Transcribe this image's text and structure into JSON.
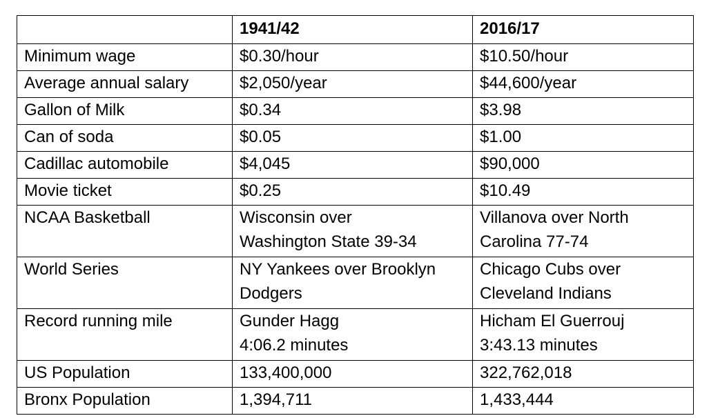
{
  "table": {
    "headers": [
      "",
      "1941/42",
      "2016/17"
    ],
    "rows": [
      {
        "label": "Minimum wage",
        "y1942": [
          "$0.30/hour"
        ],
        "y2017": [
          "$10.50/hour"
        ]
      },
      {
        "label": "Average annual salary",
        "y1942": [
          "$2,050/year"
        ],
        "y2017": [
          "$44,600/year"
        ]
      },
      {
        "label": "Gallon of Milk",
        "y1942": [
          "$0.34"
        ],
        "y2017": [
          "$3.98"
        ]
      },
      {
        "label": "Can of soda",
        "y1942": [
          "$0.05"
        ],
        "y2017": [
          "$1.00"
        ]
      },
      {
        "label": "Cadillac automobile",
        "y1942": [
          "$4,045"
        ],
        "y2017": [
          "$90,000"
        ]
      },
      {
        "label": "Movie ticket",
        "y1942": [
          "$0.25"
        ],
        "y2017": [
          "$10.49"
        ]
      },
      {
        "label": "NCAA Basketball",
        "y1942": [
          "Wisconsin over",
          "Washington State 39-34"
        ],
        "y2017": [
          "Villanova over North",
          "Carolina 77-74"
        ]
      },
      {
        "label": "World Series",
        "y1942": [
          "NY Yankees over Brooklyn",
          "Dodgers"
        ],
        "y2017": [
          "Chicago Cubs over",
          "Cleveland Indians"
        ]
      },
      {
        "label": "Record running mile",
        "y1942": [
          "Gunder Hagg",
          "4:06.2 minutes"
        ],
        "y2017": [
          "Hicham El Guerrouj",
          "3:43.13 minutes"
        ]
      },
      {
        "label": "US Population",
        "y1942": [
          "133,400,000"
        ],
        "y2017": [
          "322,762,018"
        ]
      },
      {
        "label": "Bronx Population",
        "y1942": [
          "1,394,711"
        ],
        "y2017": [
          "1,433,444"
        ]
      }
    ]
  }
}
